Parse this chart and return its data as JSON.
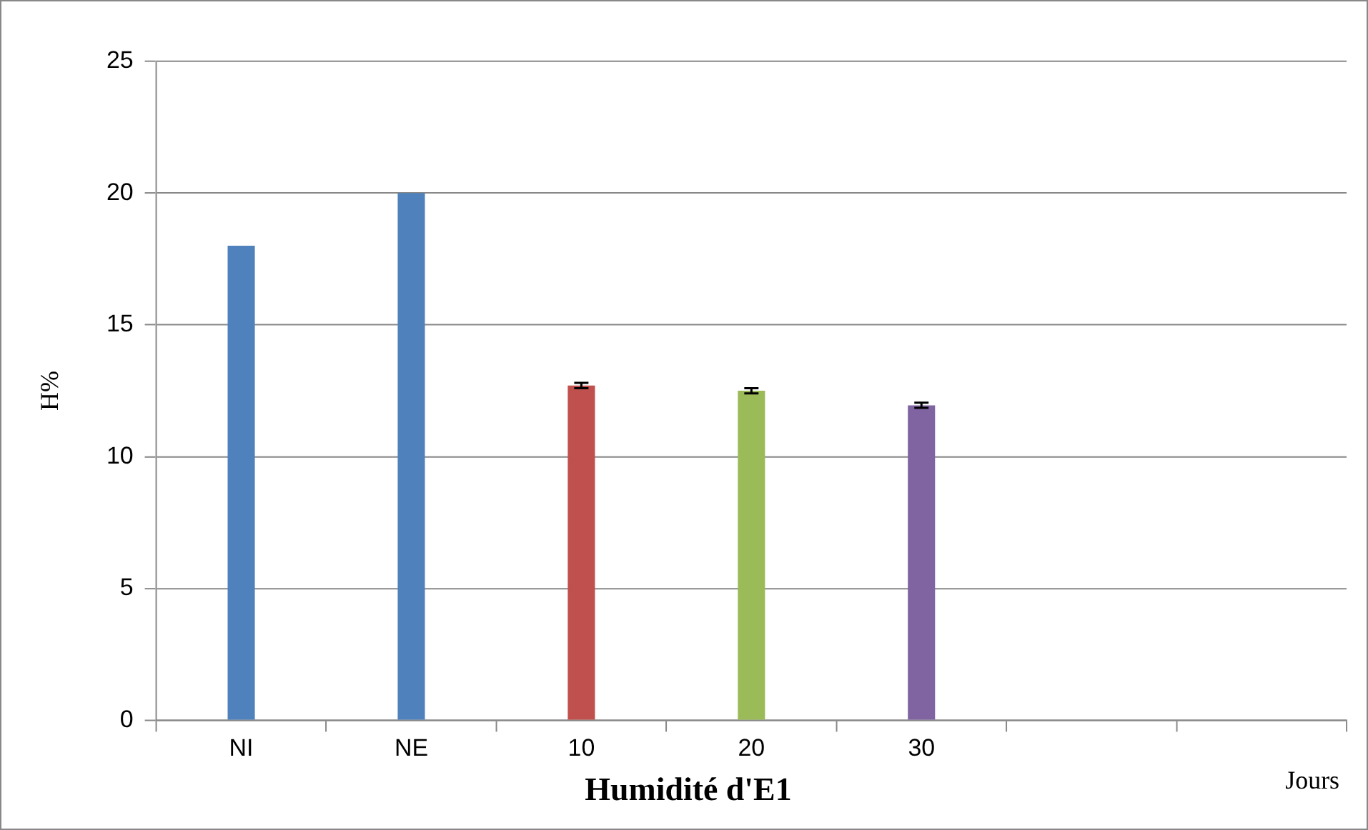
{
  "chart_data": {
    "type": "bar",
    "title": "Humidité d'E1",
    "xlabel": "Jours",
    "ylabel": "H%",
    "categories": [
      "NI",
      "NE",
      "10",
      "20",
      "30",
      null,
      null
    ],
    "values": [
      18,
      20,
      12.7,
      12.5,
      11.95,
      null,
      null
    ],
    "colors": [
      "#4f81bd",
      "#4f81bd",
      "#c0504d",
      "#9bbb59",
      "#8064a2",
      null,
      null
    ],
    "errors": [
      null,
      null,
      0.1,
      0.1,
      0.1,
      null,
      null
    ],
    "ylim": [
      0,
      25
    ],
    "yticks": [
      0,
      5,
      10,
      15,
      20,
      25
    ],
    "grid": "y",
    "legend": false
  }
}
